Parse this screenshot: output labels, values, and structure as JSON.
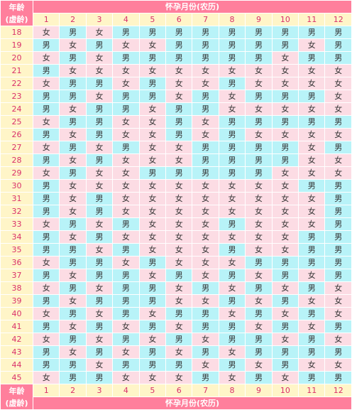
{
  "header": {
    "age_line1": "年龄",
    "age_line2": "(虚龄)",
    "month_title": "怀孕月份(农历)"
  },
  "months": [
    "1",
    "2",
    "3",
    "4",
    "5",
    "6",
    "7",
    "8",
    "9",
    "10",
    "11",
    "12"
  ],
  "legend": {
    "boy": "男",
    "girl": "女"
  },
  "rows": [
    {
      "age": "18",
      "cells": [
        "女",
        "男",
        "女",
        "男",
        "男",
        "男",
        "男",
        "男",
        "男",
        "男",
        "男",
        "男"
      ]
    },
    {
      "age": "19",
      "cells": [
        "男",
        "女",
        "男",
        "女",
        "女",
        "男",
        "男",
        "男",
        "男",
        "男",
        "女",
        "男"
      ]
    },
    {
      "age": "20",
      "cells": [
        "女",
        "男",
        "女",
        "男",
        "男",
        "男",
        "男",
        "男",
        "男",
        "女",
        "男",
        "男"
      ]
    },
    {
      "age": "21",
      "cells": [
        "男",
        "女",
        "女",
        "女",
        "女",
        "女",
        "女",
        "女",
        "女",
        "女",
        "女",
        "女"
      ]
    },
    {
      "age": "22",
      "cells": [
        "女",
        "男",
        "男",
        "女",
        "男",
        "女",
        "女",
        "男",
        "女",
        "女",
        "女",
        "女"
      ]
    },
    {
      "age": "23",
      "cells": [
        "男",
        "男",
        "女",
        "男",
        "男",
        "女",
        "男",
        "女",
        "男",
        "男",
        "男",
        "女"
      ]
    },
    {
      "age": "24",
      "cells": [
        "男",
        "女",
        "男",
        "男",
        "女",
        "男",
        "男",
        "女",
        "女",
        "女",
        "女",
        "女"
      ]
    },
    {
      "age": "25",
      "cells": [
        "女",
        "男",
        "男",
        "女",
        "女",
        "男",
        "女",
        "男",
        "男",
        "男",
        "男",
        "男"
      ]
    },
    {
      "age": "26",
      "cells": [
        "男",
        "女",
        "男",
        "女",
        "女",
        "男",
        "女",
        "男",
        "女",
        "女",
        "女",
        "女"
      ]
    },
    {
      "age": "27",
      "cells": [
        "女",
        "男",
        "女",
        "男",
        "女",
        "女",
        "男",
        "男",
        "男",
        "男",
        "女",
        "男"
      ]
    },
    {
      "age": "28",
      "cells": [
        "男",
        "女",
        "男",
        "女",
        "女",
        "女",
        "男",
        "男",
        "男",
        "男",
        "女",
        "女"
      ]
    },
    {
      "age": "29",
      "cells": [
        "女",
        "男",
        "女",
        "女",
        "男",
        "男",
        "男",
        "男",
        "男",
        "女",
        "女",
        "女"
      ]
    },
    {
      "age": "30",
      "cells": [
        "男",
        "女",
        "女",
        "女",
        "女",
        "女",
        "女",
        "女",
        "女",
        "女",
        "男",
        "男"
      ]
    },
    {
      "age": "31",
      "cells": [
        "男",
        "女",
        "男",
        "女",
        "女",
        "女",
        "女",
        "女",
        "女",
        "女",
        "女",
        "男"
      ]
    },
    {
      "age": "32",
      "cells": [
        "男",
        "女",
        "男",
        "女",
        "女",
        "女",
        "女",
        "女",
        "女",
        "女",
        "女",
        "男"
      ]
    },
    {
      "age": "33",
      "cells": [
        "女",
        "男",
        "女",
        "男",
        "女",
        "女",
        "女",
        "男",
        "女",
        "女",
        "女",
        "男"
      ]
    },
    {
      "age": "34",
      "cells": [
        "男",
        "女",
        "男",
        "女",
        "女",
        "女",
        "女",
        "女",
        "女",
        "女",
        "男",
        "男"
      ]
    },
    {
      "age": "35",
      "cells": [
        "男",
        "男",
        "女",
        "男",
        "女",
        "女",
        "女",
        "男",
        "女",
        "女",
        "男",
        "男"
      ]
    },
    {
      "age": "36",
      "cells": [
        "女",
        "男",
        "男",
        "女",
        "男",
        "女",
        "女",
        "女",
        "男",
        "男",
        "男",
        "男"
      ]
    },
    {
      "age": "37",
      "cells": [
        "男",
        "女",
        "男",
        "男",
        "女",
        "男",
        "女",
        "男",
        "女",
        "男",
        "女",
        "男"
      ]
    },
    {
      "age": "38",
      "cells": [
        "女",
        "男",
        "女",
        "男",
        "男",
        "女",
        "男",
        "女",
        "男",
        "女",
        "男",
        "女"
      ]
    },
    {
      "age": "39",
      "cells": [
        "男",
        "女",
        "男",
        "男",
        "男",
        "女",
        "女",
        "男",
        "女",
        "男",
        "女",
        "女"
      ]
    },
    {
      "age": "40",
      "cells": [
        "女",
        "男",
        "女",
        "男",
        "女",
        "男",
        "男",
        "女",
        "男",
        "女",
        "男",
        "女"
      ]
    },
    {
      "age": "41",
      "cells": [
        "男",
        "女",
        "男",
        "女",
        "男",
        "女",
        "男",
        "男",
        "女",
        "男",
        "女",
        "男"
      ]
    },
    {
      "age": "42",
      "cells": [
        "女",
        "男",
        "女",
        "男",
        "女",
        "男",
        "女",
        "男",
        "男",
        "女",
        "男",
        "女"
      ]
    },
    {
      "age": "43",
      "cells": [
        "男",
        "女",
        "男",
        "女",
        "男",
        "女",
        "男",
        "女",
        "男",
        "男",
        "男",
        "男"
      ]
    },
    {
      "age": "44",
      "cells": [
        "男",
        "男",
        "女",
        "男",
        "男",
        "男",
        "女",
        "男",
        "女",
        "男",
        "女",
        "女"
      ]
    },
    {
      "age": "45",
      "cells": [
        "女",
        "男",
        "男",
        "女",
        "女",
        "女",
        "男",
        "女",
        "男",
        "女",
        "男",
        "男"
      ]
    }
  ]
}
